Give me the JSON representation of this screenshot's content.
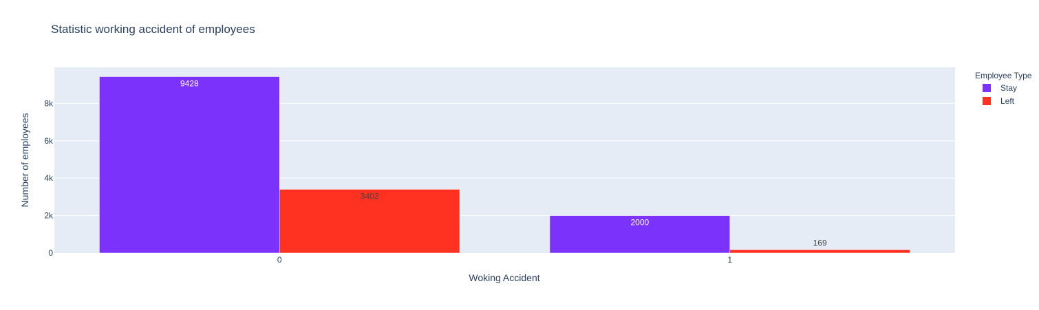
{
  "chart_data": {
    "type": "bar",
    "title": "Statistic working accident of employees",
    "xlabel": "Woking Accident",
    "ylabel": "Number of employees",
    "categories": [
      "0",
      "1"
    ],
    "series": [
      {
        "name": "Stay",
        "values": [
          9428,
          2000
        ],
        "color": "#7b33fb",
        "label_color": "#ffffff"
      },
      {
        "name": "Left",
        "values": [
          3402,
          169
        ],
        "color": "#ff3120",
        "label_color": "#444444"
      }
    ],
    "ylim": [
      0,
      9924
    ],
    "y_ticks": [
      {
        "value": 0,
        "label": "0"
      },
      {
        "value": 2000,
        "label": "2k"
      },
      {
        "value": 4000,
        "label": "4k"
      },
      {
        "value": 6000,
        "label": "6k"
      },
      {
        "value": 8000,
        "label": "8k"
      }
    ],
    "grid": true,
    "plot_bg": "#e5ecf6",
    "legend": {
      "title": "Employee Type",
      "placement": "right"
    }
  }
}
